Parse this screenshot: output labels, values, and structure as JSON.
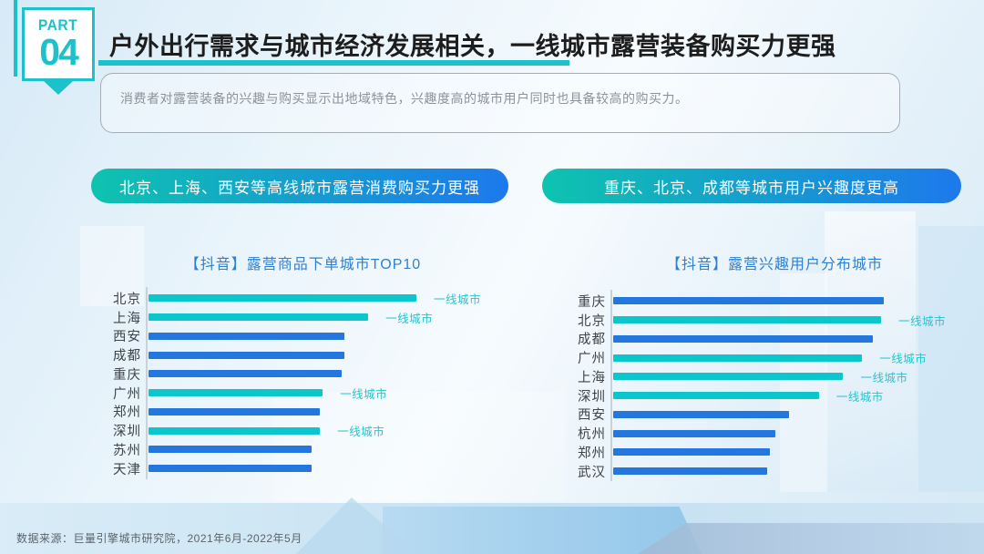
{
  "header": {
    "badge": {
      "part": "PART",
      "number": "04"
    },
    "title": "户外出行需求与城市经济发展相关，一线城市露营装备购买力更强",
    "subtitle": "消费者对露营装备的兴趣与购买显示出地域特色，兴趣度高的城市用户同时也具备较高的购买力。"
  },
  "pills": {
    "left": "北京、上海、西安等高线城市露营消费购买力更强",
    "right": "重庆、北京、成都等城市用户兴趣度更高"
  },
  "footer": {
    "source": "数据来源：巨量引擎城市研究院，2021年6月-2022年5月"
  },
  "colors": {
    "teal": "#1dc1c9",
    "bar_teal": "#0bc6cd",
    "bar_blue": "#2577e0",
    "chart_title_blue": "#2e80d3",
    "tier1_label": "#2bc3cf",
    "pill_gradient_start": "#0ec3af",
    "pill_gradient_end": "#1d79ec"
  },
  "chart_data": [
    {
      "type": "bar",
      "orientation": "horizontal",
      "title": "【抖音】露营商品下单城市TOP10",
      "categories": [
        "北京",
        "上海",
        "西安",
        "成都",
        "重庆",
        "广州",
        "郑州",
        "深圳",
        "苏州",
        "天津"
      ],
      "values": [
        100,
        82,
        73,
        73,
        72,
        65,
        64,
        64,
        61,
        61
      ],
      "value_note": "relative bar length index, top city = 100; no numeric axis or data labels shown",
      "xlim": [
        0,
        100
      ],
      "grid": false,
      "legend": "none",
      "tier1_annotation": "一线城市",
      "tier1_cities": [
        "北京",
        "上海",
        "广州",
        "深圳"
      ],
      "bar_color_tier1": "#0bc6cd",
      "bar_color_other": "#2577e0"
    },
    {
      "type": "bar",
      "orientation": "horizontal",
      "title": "【抖音】露营兴趣用户分布城市",
      "categories": [
        "重庆",
        "北京",
        "成都",
        "广州",
        "上海",
        "深圳",
        "西安",
        "杭州",
        "郑州",
        "武汉"
      ],
      "values": [
        100,
        99,
        96,
        92,
        85,
        76,
        65,
        60,
        58,
        57
      ],
      "value_note": "relative bar length index, top city = 100; no numeric axis or data labels shown",
      "xlim": [
        0,
        100
      ],
      "grid": false,
      "legend": "none",
      "tier1_annotation": "一线城市",
      "tier1_cities": [
        "北京",
        "广州",
        "上海",
        "深圳"
      ],
      "bar_color_tier1": "#0bc6cd",
      "bar_color_other": "#2577e0"
    }
  ]
}
